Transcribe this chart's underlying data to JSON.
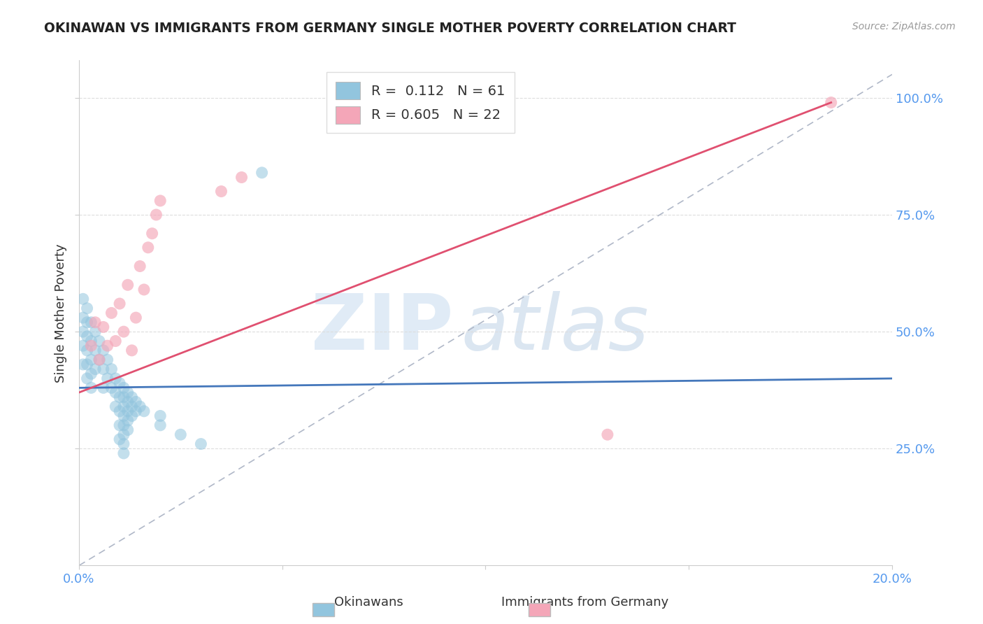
{
  "title": "OKINAWAN VS IMMIGRANTS FROM GERMANY SINGLE MOTHER POVERTY CORRELATION CHART",
  "source": "Source: ZipAtlas.com",
  "ylabel": "Single Mother Poverty",
  "xlim": [
    0,
    0.2
  ],
  "ylim": [
    0,
    1.08
  ],
  "yticks": [
    0.25,
    0.5,
    0.75,
    1.0
  ],
  "ytick_labels": [
    "25.0%",
    "50.0%",
    "75.0%",
    "100.0%"
  ],
  "xticks": [
    0.0,
    0.05,
    0.1,
    0.15,
    0.2
  ],
  "xtick_labels": [
    "0.0%",
    "",
    "",
    "",
    "20.0%"
  ],
  "legend_R1": "0.112",
  "legend_N1": "61",
  "legend_R2": "0.605",
  "legend_N2": "22",
  "blue_color": "#92c5de",
  "pink_color": "#f4a6b8",
  "blue_line_color": "#4477bb",
  "pink_line_color": "#e05070",
  "dash_line_color": "#b0b8c8",
  "okinawan_x": [
    0.001,
    0.001,
    0.001,
    0.001,
    0.001,
    0.002,
    0.002,
    0.002,
    0.002,
    0.002,
    0.002,
    0.003,
    0.003,
    0.003,
    0.003,
    0.003,
    0.004,
    0.004,
    0.004,
    0.005,
    0.005,
    0.006,
    0.006,
    0.006,
    0.007,
    0.007,
    0.008,
    0.008,
    0.009,
    0.009,
    0.009,
    0.01,
    0.01,
    0.01,
    0.01,
    0.01,
    0.011,
    0.011,
    0.011,
    0.011,
    0.011,
    0.011,
    0.011,
    0.011,
    0.012,
    0.012,
    0.012,
    0.012,
    0.012,
    0.013,
    0.013,
    0.013,
    0.014,
    0.014,
    0.015,
    0.016,
    0.02,
    0.02,
    0.025,
    0.03,
    0.045
  ],
  "okinawan_y": [
    0.57,
    0.53,
    0.5,
    0.47,
    0.43,
    0.55,
    0.52,
    0.49,
    0.46,
    0.43,
    0.4,
    0.52,
    0.48,
    0.44,
    0.41,
    0.38,
    0.5,
    0.46,
    0.42,
    0.48,
    0.44,
    0.46,
    0.42,
    0.38,
    0.44,
    0.4,
    0.42,
    0.38,
    0.4,
    0.37,
    0.34,
    0.39,
    0.36,
    0.33,
    0.3,
    0.27,
    0.38,
    0.36,
    0.34,
    0.32,
    0.3,
    0.28,
    0.26,
    0.24,
    0.37,
    0.35,
    0.33,
    0.31,
    0.29,
    0.36,
    0.34,
    0.32,
    0.35,
    0.33,
    0.34,
    0.33,
    0.32,
    0.3,
    0.28,
    0.26,
    0.84
  ],
  "germany_x": [
    0.003,
    0.004,
    0.005,
    0.006,
    0.007,
    0.008,
    0.009,
    0.01,
    0.011,
    0.012,
    0.013,
    0.014,
    0.015,
    0.016,
    0.017,
    0.018,
    0.019,
    0.02,
    0.035,
    0.04,
    0.13,
    0.185
  ],
  "germany_y": [
    0.47,
    0.52,
    0.44,
    0.51,
    0.47,
    0.54,
    0.48,
    0.56,
    0.5,
    0.6,
    0.46,
    0.53,
    0.64,
    0.59,
    0.68,
    0.71,
    0.75,
    0.78,
    0.8,
    0.83,
    0.28,
    0.99
  ],
  "blue_trendline": [
    0.0,
    0.2,
    0.38,
    0.4
  ],
  "pink_trendline": [
    0.0,
    0.185,
    0.37,
    0.99
  ]
}
